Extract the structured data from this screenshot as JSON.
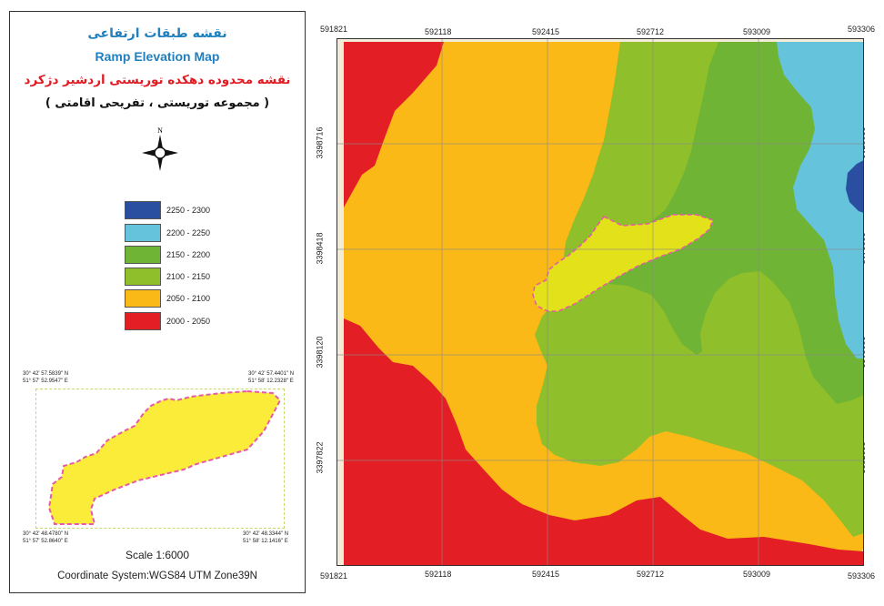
{
  "title_fa": "نقشه طبقات ارتفاعی",
  "title_en": "Ramp Elevation Map",
  "subtitle_fa": "نقشه محدوده دهکده توریستی اردشیر دژکرد",
  "subtitle2_fa": "( مجموعه توریستی ، تفریحی اقامتی )",
  "north_label": "N",
  "legend": [
    {
      "range": "2250 - 2300",
      "color": "#2a4fa1"
    },
    {
      "range": "2200 - 2250",
      "color": "#66c3dc"
    },
    {
      "range": "2150 - 2200",
      "color": "#6fb434"
    },
    {
      "range": "2100 - 2150",
      "color": "#8fbf2a"
    },
    {
      "range": "2050 - 2100",
      "color": "#fbb917"
    },
    {
      "range": "2000 - 2050",
      "color": "#e31e24"
    }
  ],
  "inset": {
    "top_left": "30° 42' 57.5839\" N\n51° 57' 52.9547\" E",
    "top_right": "30° 42' 57.4401\" N\n51° 58' 12.2328\" E",
    "bottom_left": "30° 42' 48.4780\" N\n51° 57' 52.8640\" E",
    "bottom_right": "30° 42' 48.3344\" N\n51° 58' 12.1416\" E"
  },
  "scale": "Scale 1:6000",
  "coordinate_system": "Coordinate System:WGS84 UTM Zone39N",
  "grid": {
    "eastings": [
      "591821",
      "592118",
      "592415",
      "592712",
      "593009",
      "593306"
    ],
    "northings": [
      "3398716",
      "3398418",
      "3398120",
      "3397822"
    ]
  },
  "colors": {
    "boundary": "#e55ba6",
    "inset_fill": "#fbec3a",
    "highlight_fill": "#e3e21a",
    "background_fill": "#f2ecd9"
  }
}
